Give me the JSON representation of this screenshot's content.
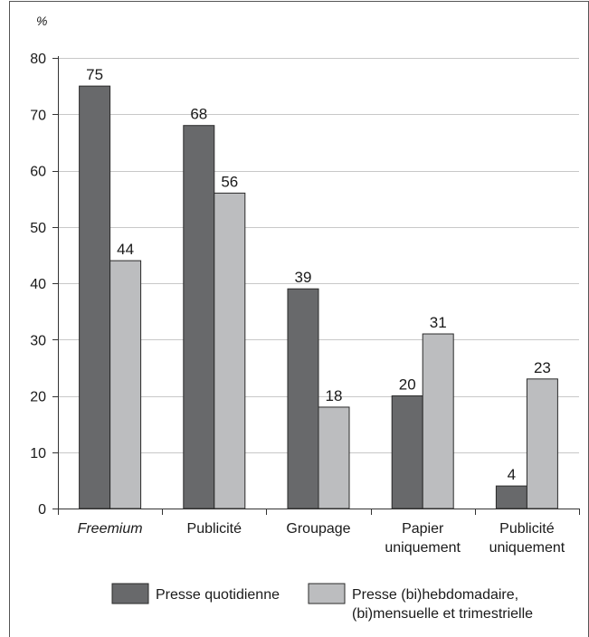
{
  "chart_data": {
    "type": "bar",
    "ylabel": "%",
    "ylim": [
      0,
      80
    ],
    "yticks": [
      0,
      10,
      20,
      30,
      40,
      50,
      60,
      70,
      80
    ],
    "grid": true,
    "legend_position": "bottom",
    "categories": [
      {
        "lines": [
          "Freemium"
        ],
        "italic": true
      },
      {
        "lines": [
          "Publicité"
        ],
        "italic": false
      },
      {
        "lines": [
          "Groupage"
        ],
        "italic": false
      },
      {
        "lines": [
          "Papier",
          "uniquement"
        ],
        "italic": false
      },
      {
        "lines": [
          "Publicité",
          "uniquement"
        ],
        "italic": false
      }
    ],
    "series": [
      {
        "name": "Presse quotidienne",
        "name_lines": [
          "Presse quotidienne"
        ],
        "color": "#68696b",
        "values": [
          75,
          68,
          39,
          20,
          4
        ]
      },
      {
        "name": "Presse (bi)hebdomadaire, (bi)mensuelle et trimestrielle",
        "name_lines": [
          "Presse (bi)hebdomadaire,",
          "(bi)mensuelle et trimestrielle"
        ],
        "color": "#bcbdbf",
        "values": [
          44,
          56,
          18,
          31,
          23
        ]
      }
    ],
    "colors": {
      "axis": "#333333",
      "grid": "#c8c8c8",
      "frame": "#555555",
      "bar_stroke": "#2a2a2a"
    }
  }
}
